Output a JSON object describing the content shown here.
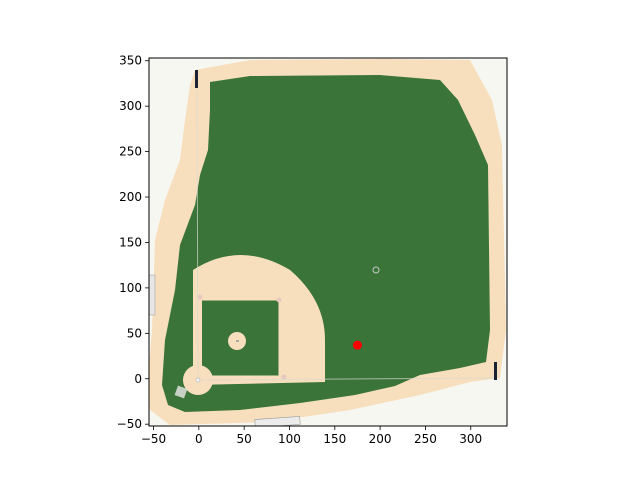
{
  "chart_data": {
    "type": "scatter",
    "title": "",
    "xlabel": "",
    "ylabel": "",
    "xlim": [
      -55,
      340
    ],
    "ylim": [
      -52,
      353
    ],
    "xticks": [
      -50,
      0,
      50,
      100,
      150,
      200,
      250,
      300
    ],
    "yticks": [
      -50,
      0,
      50,
      100,
      150,
      200,
      250,
      300,
      350
    ],
    "xtick_labels": [
      "−50",
      "0",
      "50",
      "100",
      "150",
      "200",
      "250",
      "300"
    ],
    "ytick_labels": [
      "−50",
      "0",
      "50",
      "100",
      "150",
      "200",
      "250",
      "300",
      "350"
    ],
    "grid": false,
    "background_image": "baseball-field-diagram",
    "series": [
      {
        "x": [
          175
        ],
        "y": [
          37
        ],
        "color": "#ff0000"
      }
    ]
  },
  "colors": {
    "grass": "#3a7438",
    "dirt": "#f7dfbd",
    "paper": "#f7f7f2",
    "marker": "#ff0000"
  }
}
